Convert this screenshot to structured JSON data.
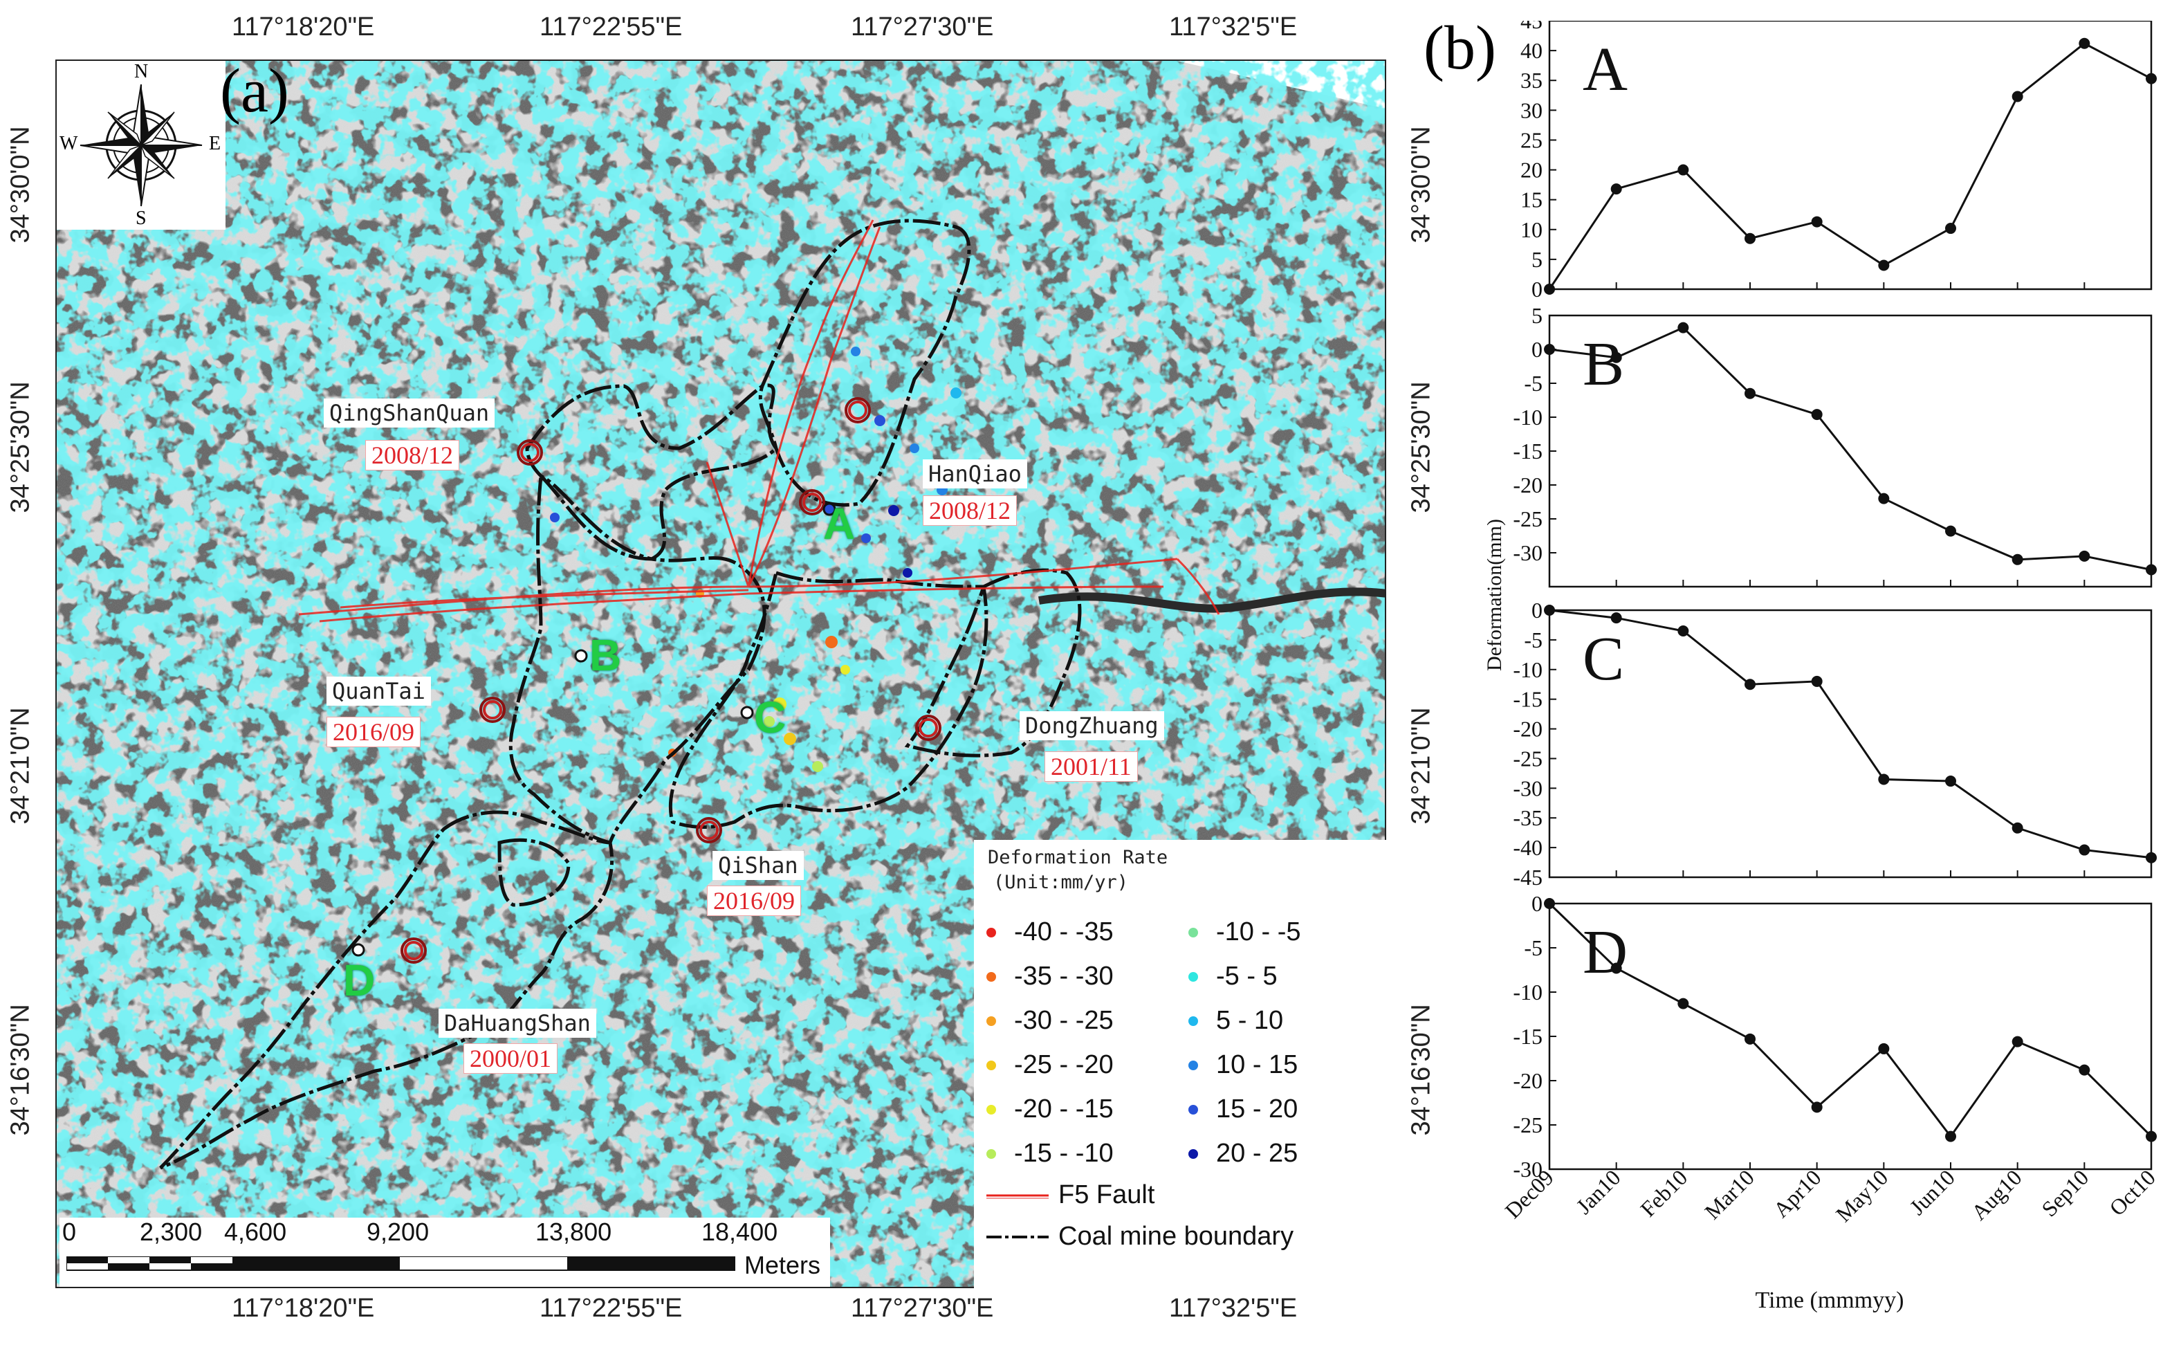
{
  "panel_a": {
    "label": "(a)",
    "top_longitudes": [
      "117°18'20\"E",
      "117°22'55\"E",
      "117°27'30\"E",
      "117°32'5\"E"
    ],
    "bottom_longitudes": [
      "117°18'20\"E",
      "117°22'55\"E",
      "117°27'30\"E",
      "117°32'5\"E"
    ],
    "left_latitudes": [
      "34°30'0\"N",
      "34°25'30\"N",
      "34°21'0\"N",
      "34°16'30\"N"
    ],
    "right_latitudes": [
      "34°30'0\"N",
      "34°25'30\"N",
      "34°21'0\"N",
      "34°16'30\"N"
    ],
    "compass": {
      "n": "N",
      "s": "S",
      "e": "E",
      "w": "W"
    },
    "mines": [
      {
        "name": "QingShanQuan",
        "date": "2008/12"
      },
      {
        "name": "HanQiao",
        "date": "2008/12"
      },
      {
        "name": "QuanTai",
        "date": "2016/09"
      },
      {
        "name": "DongZhuang",
        "date": "2001/11"
      },
      {
        "name": "QiShan",
        "date": "2016/09"
      },
      {
        "name": "DaHuangShan",
        "date": "2000/01"
      }
    ],
    "points": [
      "A",
      "B",
      "C",
      "D"
    ],
    "legend": {
      "title": "Deformation Rate",
      "unit": "(Unit:mm/yr)",
      "items_left": [
        {
          "label": "-40 - -35",
          "color": "#e8231d"
        },
        {
          "label": "-35 - -30",
          "color": "#f26a1b"
        },
        {
          "label": "-30 - -25",
          "color": "#f5a021"
        },
        {
          "label": "-25 - -20",
          "color": "#f2c81a"
        },
        {
          "label": "-20 - -15",
          "color": "#e8ec2a"
        },
        {
          "label": "-15 - -10",
          "color": "#b7ec5b"
        }
      ],
      "items_right": [
        {
          "label": "-10 - -5",
          "color": "#79e29a"
        },
        {
          "label": "-5 - 5",
          "color": "#2ee6e0"
        },
        {
          "label": "5 - 10",
          "color": "#1fb8ee"
        },
        {
          "label": "10 - 15",
          "color": "#2482e4"
        },
        {
          "label": "15 - 20",
          "color": "#2750d8"
        },
        {
          "label": "20 - 25",
          "color": "#0c18a8"
        }
      ],
      "fault_label": "F5 Fault",
      "boundary_label": "Coal mine boundary"
    },
    "scale": {
      "ticks": [
        "0",
        "2,300",
        "4,600",
        "9,200",
        "13,800",
        "18,400"
      ],
      "unit": "Meters"
    }
  },
  "panel_b": {
    "label": "(b)"
  },
  "chart_data": [
    {
      "type": "line",
      "title": "A",
      "categories": [
        "Dec09",
        "Jan10",
        "Feb10",
        "Mar10",
        "Apr10",
        "May10",
        "Jun10",
        "Aug10",
        "Sep10",
        "Oct10"
      ],
      "values": [
        0,
        16.8,
        20,
        8.5,
        11.3,
        4,
        10.2,
        32.3,
        41.2,
        35.3
      ],
      "ylim": [
        0,
        45
      ],
      "yticks": [
        0,
        5,
        10,
        15,
        20,
        25,
        30,
        35,
        40,
        45
      ]
    },
    {
      "type": "line",
      "title": "B",
      "categories": [
        "Dec09",
        "Jan10",
        "Feb10",
        "Mar10",
        "Apr10",
        "May10",
        "Jun10",
        "Aug10",
        "Sep10",
        "Oct10"
      ],
      "values": [
        0,
        -1.2,
        3.2,
        -6.5,
        -9.6,
        -22,
        -26.8,
        -31,
        -30.5,
        -32.5
      ],
      "ylim": [
        -35,
        5
      ],
      "yticks": [
        5,
        0,
        -5,
        -10,
        -15,
        -20,
        -25,
        -30
      ]
    },
    {
      "type": "line",
      "title": "C",
      "categories": [
        "Dec09",
        "Jan10",
        "Feb10",
        "Mar10",
        "Apr10",
        "May10",
        "Jun10",
        "Aug10",
        "Sep10",
        "Oct10"
      ],
      "values": [
        0,
        -1.3,
        -3.5,
        -12.5,
        -12,
        -28.5,
        -28.8,
        -36.7,
        -40.4,
        -41.7
      ],
      "ylim": [
        -45,
        0
      ],
      "yticks": [
        0,
        -5,
        -10,
        -15,
        -20,
        -25,
        -30,
        -35,
        -40,
        -45
      ]
    },
    {
      "type": "line",
      "title": "D",
      "categories": [
        "Dec09",
        "Jan10",
        "Feb10",
        "Mar10",
        "Apr10",
        "May10",
        "Jun10",
        "Aug10",
        "Sep10",
        "Oct10"
      ],
      "values": [
        0,
        -7.3,
        -11.3,
        -15.3,
        -23,
        -16.4,
        -26.3,
        -15.6,
        -18.8,
        -26.3
      ],
      "ylim": [
        -30,
        0
      ],
      "yticks": [
        0,
        -5,
        -10,
        -15,
        -20,
        -25,
        -30
      ],
      "xlabel": "Time (mmmyy)"
    }
  ],
  "ylabel_shared": "Deformation(mm)"
}
